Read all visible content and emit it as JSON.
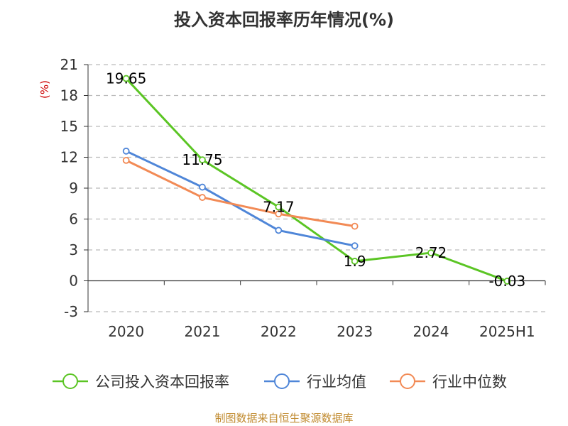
{
  "title": "投入资本回报率历年情况(%)",
  "source_note": "制图数据来自恒生聚源数据库",
  "chart_data": {
    "type": "line",
    "categories": [
      "2020",
      "2021",
      "2022",
      "2023",
      "2024",
      "2025H1"
    ],
    "ylabel": "(%)",
    "ylim": [
      -3,
      21
    ],
    "yticks": [
      -3,
      0,
      3,
      6,
      9,
      12,
      15,
      18,
      21
    ],
    "grid": true,
    "legend_position": "bottom",
    "series": [
      {
        "name": "公司投入资本回报率",
        "color": "#5bc524",
        "values": [
          19.65,
          11.75,
          7.17,
          1.9,
          2.72,
          -0.03
        ],
        "labels": [
          "19.65",
          "11.75",
          "7.17",
          "1.9",
          "2.72",
          "-0.03"
        ]
      },
      {
        "name": "行业均值",
        "color": "#4f86d8",
        "values": [
          12.6,
          9.1,
          4.9,
          3.4,
          null,
          null
        ]
      },
      {
        "name": "行业中位数",
        "color": "#f28a55",
        "values": [
          11.7,
          8.1,
          6.5,
          5.3,
          null,
          null
        ]
      }
    ]
  }
}
